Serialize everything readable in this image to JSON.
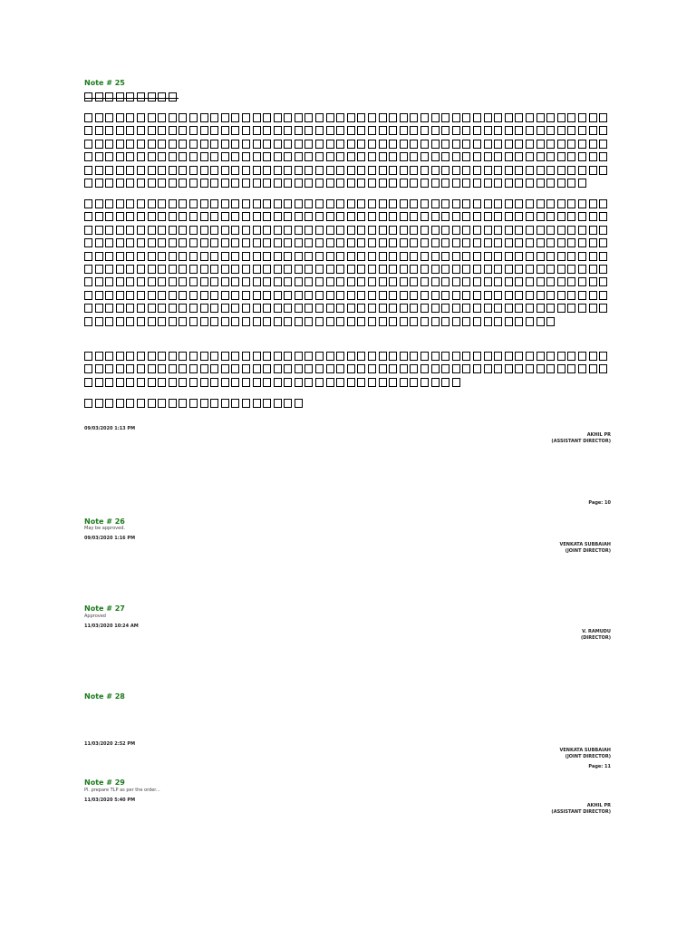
{
  "notes": [
    {
      "heading": "Note # 25",
      "timestamp": "09/03/2020 1:13 PM",
      "signer_name": "AKHIL PR",
      "signer_title": "(ASSISTANT DIRECTOR)"
    },
    {
      "heading": "Note # 26",
      "text": "May be approved.",
      "timestamp": "09/03/2020 1:16 PM",
      "signer_name": "VENKATA SUBBAIAH",
      "signer_title": "(JOINT DIRECTOR)"
    },
    {
      "heading": "Note # 27",
      "text": "Approved",
      "timestamp": "11/03/2020 10:24 AM",
      "signer_name": "V. RAMUDU",
      "signer_title": "(DIRECTOR)"
    },
    {
      "heading": "Note # 28",
      "timestamp": "11/03/2020 2:52 PM",
      "signer_name": "VENKATA SUBBAIAH",
      "signer_title": "(JOINT DIRECTOR)"
    },
    {
      "heading": "Note # 29",
      "text": "Pl. prepare TLP as per the order...",
      "timestamp": "11/03/2020 5:40 PM",
      "signer_name": "AKHIL PR",
      "signer_title": "(ASSISTANT DIRECTOR)"
    }
  ],
  "pages": [
    "Page: 10",
    "Page: 11"
  ]
}
